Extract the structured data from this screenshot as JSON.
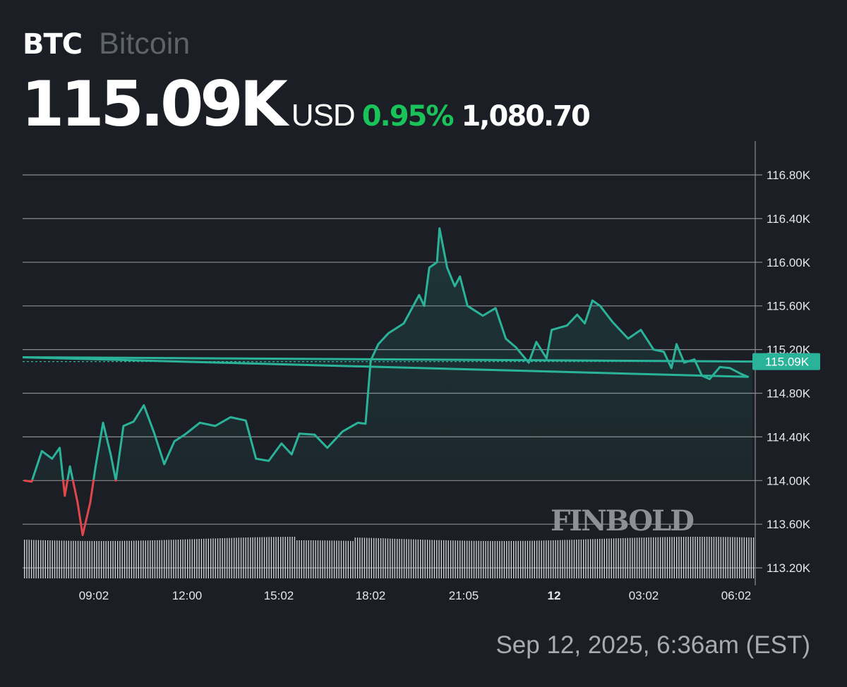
{
  "header": {
    "ticker": "BTC",
    "name": "Bitcoin",
    "price": "115.09K",
    "currency": "USD",
    "change_pct": "0.95%",
    "change_abs": "1,080.70"
  },
  "current_price_label": "115.09K",
  "watermark": "FINBOLD",
  "timestamp": "Sep 12, 2025, 6:36am (EST)",
  "colors": {
    "background": "#1b1e25",
    "line_up": "#2bb39a",
    "line_down": "#e0474c",
    "change_positive": "#19c35a",
    "price_tag": "#2bb39a",
    "grid": "#8a8d93"
  },
  "chart_data": {
    "type": "line",
    "title": "BTC Bitcoin",
    "xlabel": "",
    "ylabel": "USD",
    "ylim": [
      113000,
      117000
    ],
    "grid": true,
    "legend": "none",
    "baseline": 114000,
    "y_ticks": [
      "116.80K",
      "116.40K",
      "116.00K",
      "115.60K",
      "115.20K",
      "114.80K",
      "114.40K",
      "114.00K",
      "113.60K",
      "113.20K"
    ],
    "x_ticks": [
      "09:02",
      "12:00",
      "15:02",
      "18:02",
      "21:05",
      "12",
      "03:02",
      "06:02"
    ],
    "x_ticks_bold": [
      "12"
    ],
    "current_value": 115090,
    "approx_points": [
      {
        "t": "06:40",
        "v": 114000
      },
      {
        "t": "07:00",
        "v": 113990
      },
      {
        "t": "07:20",
        "v": 114270
      },
      {
        "t": "07:40",
        "v": 114200
      },
      {
        "t": "07:55",
        "v": 114300
      },
      {
        "t": "08:05",
        "v": 113860
      },
      {
        "t": "08:15",
        "v": 114130
      },
      {
        "t": "08:30",
        "v": 113800
      },
      {
        "t": "08:40",
        "v": 113500
      },
      {
        "t": "08:55",
        "v": 113800
      },
      {
        "t": "09:05",
        "v": 114120
      },
      {
        "t": "09:20",
        "v": 114530
      },
      {
        "t": "09:35",
        "v": 114240
      },
      {
        "t": "09:45",
        "v": 114000
      },
      {
        "t": "10:00",
        "v": 114500
      },
      {
        "t": "10:20",
        "v": 114540
      },
      {
        "t": "10:40",
        "v": 114690
      },
      {
        "t": "11:00",
        "v": 114440
      },
      {
        "t": "11:20",
        "v": 114150
      },
      {
        "t": "11:40",
        "v": 114360
      },
      {
        "t": "12:00",
        "v": 114420
      },
      {
        "t": "12:30",
        "v": 114530
      },
      {
        "t": "13:00",
        "v": 114500
      },
      {
        "t": "13:30",
        "v": 114580
      },
      {
        "t": "14:00",
        "v": 114550
      },
      {
        "t": "14:20",
        "v": 114200
      },
      {
        "t": "14:45",
        "v": 114180
      },
      {
        "t": "15:10",
        "v": 114340
      },
      {
        "t": "15:30",
        "v": 114240
      },
      {
        "t": "15:45",
        "v": 114430
      },
      {
        "t": "16:15",
        "v": 114420
      },
      {
        "t": "16:40",
        "v": 114300
      },
      {
        "t": "17:10",
        "v": 114450
      },
      {
        "t": "17:40",
        "v": 114530
      },
      {
        "t": "17:55",
        "v": 114520
      },
      {
        "t": "18:05",
        "v": 115100
      },
      {
        "t": "18:20",
        "v": 115250
      },
      {
        "t": "18:40",
        "v": 115350
      },
      {
        "t": "19:10",
        "v": 115440
      },
      {
        "t": "19:40",
        "v": 115700
      },
      {
        "t": "19:50",
        "v": 115600
      },
      {
        "t": "20:00",
        "v": 115950
      },
      {
        "t": "20:15",
        "v": 116000
      },
      {
        "t": "20:20",
        "v": 116310
      },
      {
        "t": "20:35",
        "v": 115950
      },
      {
        "t": "20:50",
        "v": 115780
      },
      {
        "t": "21:00",
        "v": 115870
      },
      {
        "t": "21:15",
        "v": 115600
      },
      {
        "t": "21:45",
        "v": 115510
      },
      {
        "t": "22:10",
        "v": 115580
      },
      {
        "t": "22:30",
        "v": 115300
      },
      {
        "t": "22:50",
        "v": 115220
      },
      {
        "t": "23:15",
        "v": 115080
      },
      {
        "t": "23:30",
        "v": 115270
      },
      {
        "t": "23:50",
        "v": 115120
      },
      {
        "t": "00:00",
        "v": 115380
      },
      {
        "t": "00:30",
        "v": 115420
      },
      {
        "t": "00:50",
        "v": 115520
      },
      {
        "t": "01:05",
        "v": 115440
      },
      {
        "t": "01:20",
        "v": 115650
      },
      {
        "t": "01:35",
        "v": 115600
      },
      {
        "t": "02:00",
        "v": 115450
      },
      {
        "t": "02:30",
        "v": 115300
      },
      {
        "t": "02:55",
        "v": 115380
      },
      {
        "t": "03:20",
        "v": 115200
      },
      {
        "t": "03:40",
        "v": 115180
      },
      {
        "t": "03:55",
        "v": 115030
      },
      {
        "t": "04:05",
        "v": 115250
      },
      {
        "t": "04:20",
        "v": 115080
      },
      {
        "t": "04:40",
        "v": 115110
      },
      {
        "t": "04:55",
        "v": 114960
      },
      {
        "t": "05:10",
        "v": 114930
      },
      {
        "t": "05:30",
        "v": 115040
      },
      {
        "t": "05:50",
        "v": 115030
      },
      {
        "t": "06:10",
        "v": 114980
      },
      {
        "t": "06:25",
        "v": 114950
      },
      {
        "t": "06:32",
        "v": 115130
      },
      {
        "t": "06:36",
        "v": 115090
      }
    ],
    "volume": "uniform thin white bars along bottom of chart, roughly constant height"
  }
}
